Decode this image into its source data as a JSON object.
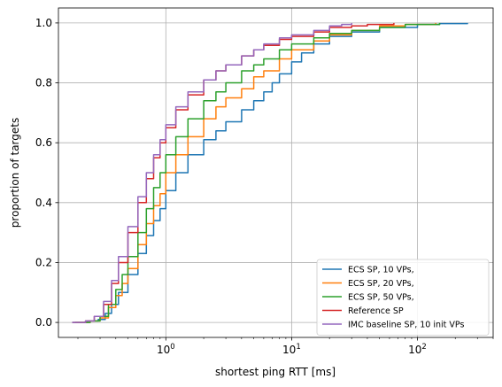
{
  "chart_data": {
    "type": "line",
    "title": "",
    "xlabel": "shortest ping RTT [ms]",
    "ylabel": "proportion of targets",
    "xscale": "log",
    "xlim": [
      0.14,
      400
    ],
    "ylim": [
      -0.05,
      1.05
    ],
    "grid": true,
    "legend_position": "lower-right",
    "x_ticks": [
      {
        "value": 1,
        "base": "10",
        "exp": "0"
      },
      {
        "value": 10,
        "base": "10",
        "exp": "1"
      },
      {
        "value": 100,
        "base": "10",
        "exp": "2"
      }
    ],
    "y_ticks": [
      {
        "value": 0.0,
        "label": "0.0"
      },
      {
        "value": 0.2,
        "label": "0.2"
      },
      {
        "value": 0.4,
        "label": "0.4"
      },
      {
        "value": 0.6,
        "label": "0.6"
      },
      {
        "value": 0.8,
        "label": "0.8"
      },
      {
        "value": 1.0,
        "label": "1.0"
      }
    ],
    "series": [
      {
        "name": "ECS SP, 10 VPs,",
        "color": "#1f77b4",
        "points": [
          [
            0.18,
            0.0
          ],
          [
            0.24,
            0.005
          ],
          [
            0.29,
            0.01
          ],
          [
            0.33,
            0.03
          ],
          [
            0.37,
            0.06
          ],
          [
            0.42,
            0.1
          ],
          [
            0.5,
            0.16
          ],
          [
            0.6,
            0.23
          ],
          [
            0.7,
            0.29
          ],
          [
            0.8,
            0.34
          ],
          [
            0.9,
            0.38
          ],
          [
            1.0,
            0.44
          ],
          [
            1.2,
            0.5
          ],
          [
            1.5,
            0.56
          ],
          [
            2.0,
            0.61
          ],
          [
            2.5,
            0.64
          ],
          [
            3.0,
            0.67
          ],
          [
            4.0,
            0.71
          ],
          [
            5.0,
            0.74
          ],
          [
            6.0,
            0.77
          ],
          [
            7.0,
            0.8
          ],
          [
            8.0,
            0.83
          ],
          [
            10,
            0.87
          ],
          [
            12,
            0.9
          ],
          [
            15,
            0.93
          ],
          [
            20,
            0.955
          ],
          [
            30,
            0.97
          ],
          [
            50,
            0.985
          ],
          [
            100,
            0.995
          ],
          [
            150,
            0.998
          ],
          [
            250,
            1.0
          ]
        ]
      },
      {
        "name": "ECS SP, 20 VPs,",
        "color": "#ff7f0e",
        "points": [
          [
            0.19,
            0.0
          ],
          [
            0.25,
            0.005
          ],
          [
            0.3,
            0.015
          ],
          [
            0.35,
            0.05
          ],
          [
            0.4,
            0.09
          ],
          [
            0.45,
            0.13
          ],
          [
            0.5,
            0.18
          ],
          [
            0.6,
            0.26
          ],
          [
            0.7,
            0.33
          ],
          [
            0.8,
            0.39
          ],
          [
            0.9,
            0.43
          ],
          [
            1.0,
            0.5
          ],
          [
            1.2,
            0.56
          ],
          [
            1.5,
            0.62
          ],
          [
            2.0,
            0.68
          ],
          [
            2.5,
            0.72
          ],
          [
            3.0,
            0.75
          ],
          [
            4.0,
            0.78
          ],
          [
            5.0,
            0.82
          ],
          [
            6.0,
            0.84
          ],
          [
            8.0,
            0.88
          ],
          [
            10,
            0.91
          ],
          [
            15,
            0.94
          ],
          [
            20,
            0.96
          ],
          [
            30,
            0.975
          ],
          [
            50,
            0.99
          ],
          [
            80,
            0.995
          ],
          [
            140,
            1.0
          ]
        ]
      },
      {
        "name": "ECS SP, 50 VPs,",
        "color": "#2ca02c",
        "points": [
          [
            0.19,
            0.0
          ],
          [
            0.25,
            0.005
          ],
          [
            0.3,
            0.02
          ],
          [
            0.35,
            0.06
          ],
          [
            0.4,
            0.11
          ],
          [
            0.45,
            0.16
          ],
          [
            0.5,
            0.22
          ],
          [
            0.6,
            0.3
          ],
          [
            0.7,
            0.38
          ],
          [
            0.8,
            0.45
          ],
          [
            0.9,
            0.5
          ],
          [
            1.0,
            0.56
          ],
          [
            1.2,
            0.62
          ],
          [
            1.5,
            0.68
          ],
          [
            2.0,
            0.74
          ],
          [
            2.5,
            0.77
          ],
          [
            3.0,
            0.8
          ],
          [
            4.0,
            0.84
          ],
          [
            5.0,
            0.86
          ],
          [
            6.0,
            0.88
          ],
          [
            8.0,
            0.91
          ],
          [
            10,
            0.93
          ],
          [
            15,
            0.95
          ],
          [
            20,
            0.965
          ],
          [
            30,
            0.975
          ],
          [
            50,
            0.985
          ],
          [
            80,
            0.995
          ],
          [
            150,
            1.0
          ]
        ]
      },
      {
        "name": "Reference SP",
        "color": "#d62728",
        "points": [
          [
            0.18,
            0.0
          ],
          [
            0.23,
            0.005
          ],
          [
            0.27,
            0.02
          ],
          [
            0.32,
            0.06
          ],
          [
            0.37,
            0.13
          ],
          [
            0.42,
            0.2
          ],
          [
            0.5,
            0.3
          ],
          [
            0.6,
            0.4
          ],
          [
            0.7,
            0.48
          ],
          [
            0.8,
            0.55
          ],
          [
            0.9,
            0.6
          ],
          [
            1.0,
            0.65
          ],
          [
            1.2,
            0.71
          ],
          [
            1.5,
            0.76
          ],
          [
            2.0,
            0.81
          ],
          [
            2.5,
            0.84
          ],
          [
            3.0,
            0.86
          ],
          [
            4.0,
            0.89
          ],
          [
            5.0,
            0.91
          ],
          [
            6.0,
            0.925
          ],
          [
            8.0,
            0.945
          ],
          [
            10,
            0.955
          ],
          [
            15,
            0.97
          ],
          [
            20,
            0.985
          ],
          [
            30,
            0.99
          ],
          [
            40,
            0.995
          ],
          [
            65,
            1.0
          ]
        ]
      },
      {
        "name": "IMC baseline SP, 10 init VPs",
        "color": "#9467bd",
        "points": [
          [
            0.18,
            0.0
          ],
          [
            0.23,
            0.005
          ],
          [
            0.27,
            0.02
          ],
          [
            0.32,
            0.07
          ],
          [
            0.37,
            0.14
          ],
          [
            0.42,
            0.22
          ],
          [
            0.5,
            0.32
          ],
          [
            0.6,
            0.42
          ],
          [
            0.7,
            0.5
          ],
          [
            0.8,
            0.56
          ],
          [
            0.9,
            0.61
          ],
          [
            1.0,
            0.66
          ],
          [
            1.2,
            0.72
          ],
          [
            1.5,
            0.77
          ],
          [
            2.0,
            0.81
          ],
          [
            2.5,
            0.84
          ],
          [
            3.0,
            0.86
          ],
          [
            4.0,
            0.89
          ],
          [
            5.0,
            0.91
          ],
          [
            6.0,
            0.93
          ],
          [
            8.0,
            0.95
          ],
          [
            10,
            0.96
          ],
          [
            15,
            0.975
          ],
          [
            20,
            0.99
          ],
          [
            25,
            0.995
          ],
          [
            30,
            1.0
          ]
        ]
      }
    ]
  }
}
